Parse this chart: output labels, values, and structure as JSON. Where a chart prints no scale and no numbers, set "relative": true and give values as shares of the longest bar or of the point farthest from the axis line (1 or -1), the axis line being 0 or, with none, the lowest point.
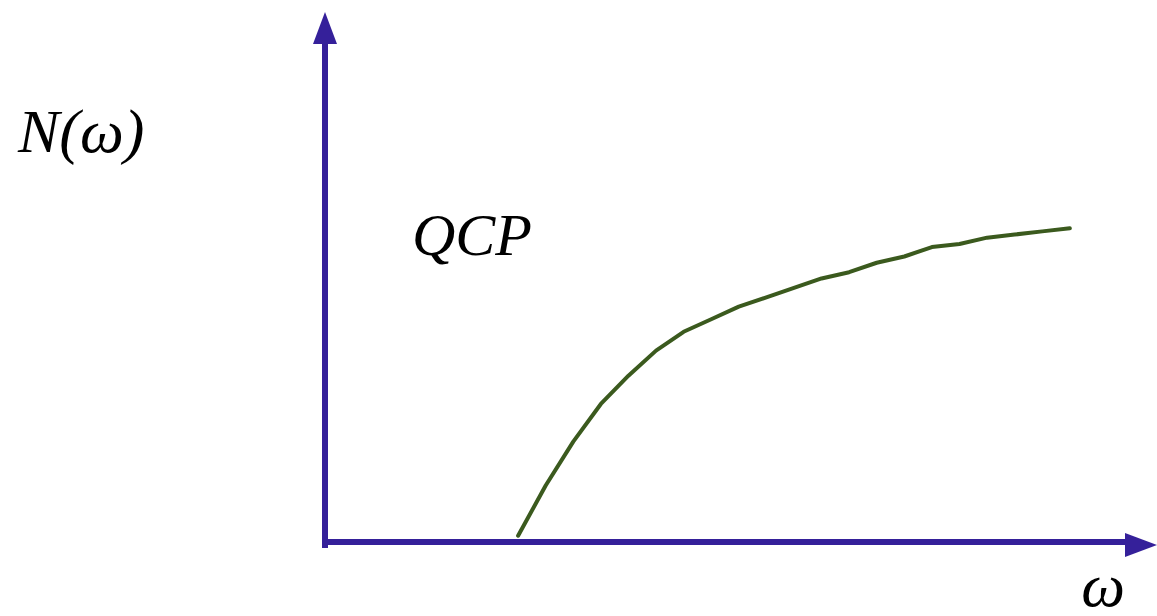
{
  "chart_data": {
    "type": "line",
    "relative": true,
    "ylabel": "N(ω)",
    "xlabel": "ω",
    "annotations": [
      "QCP"
    ],
    "categories": [
      null,
      null,
      null,
      null,
      null,
      null,
      null,
      null,
      null,
      null,
      null,
      null,
      null,
      null,
      null,
      null,
      null,
      null,
      null,
      null,
      null,
      null,
      null,
      null,
      null,
      null,
      null,
      null,
      null,
      null
    ],
    "series": [
      {
        "color": "#3b5a1e",
        "values": [
          null,
          null,
          null,
          null,
          null,
          null,
          null,
          0.02,
          0.18,
          0.32,
          0.44,
          0.53,
          0.61,
          0.67,
          0.71,
          0.75,
          0.78,
          0.81,
          0.84,
          0.86,
          0.89,
          0.91,
          0.94,
          0.95,
          0.97,
          0.98,
          0.99,
          1,
          null,
          null
        ]
      }
    ],
    "grid": false,
    "marker": "none",
    "line_style": "solid"
  }
}
